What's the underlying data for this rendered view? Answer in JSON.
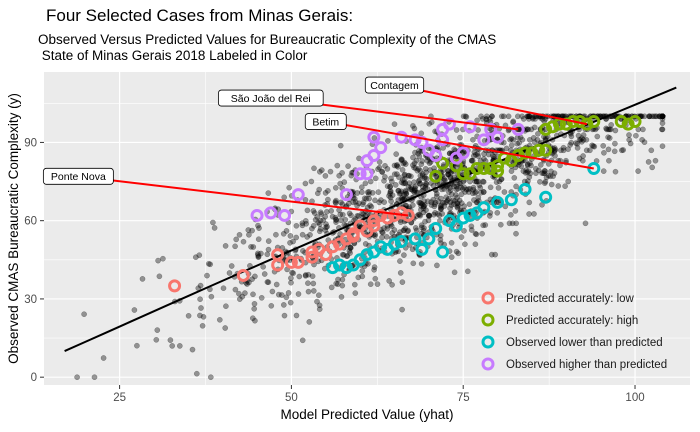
{
  "title": "Four Selected Cases from Minas Gerais:",
  "subtitle": [
    "Observed Versus Predicted Values for Bureaucratic Complexity of the CMAS",
    " State of Minas Gerais 2018 Labeled in Color"
  ],
  "colors": {
    "panel": "#ebebeb",
    "grid": "#ffffff",
    "points": "#000000",
    "fit_line": "#000000",
    "label_line": "#ff0000",
    "low": "#f8766d",
    "high": "#7cae00",
    "lower": "#00bfc4",
    "higher": "#c77cff"
  },
  "chart_data": {
    "type": "scatter",
    "xlabel": "Model Predicted Value (yhat)",
    "ylabel": "Observed CMAS Bureaucratic Complexity (y)",
    "x_ticks": [
      25,
      50,
      75,
      100
    ],
    "y_ticks": [
      0,
      30,
      60,
      90
    ],
    "xlim": [
      14,
      108
    ],
    "ylim": [
      -3,
      117
    ],
    "grid": true,
    "legend_position": "bottom-right",
    "fit_line": {
      "x": [
        17,
        106
      ],
      "y": [
        10,
        111
      ]
    },
    "background_cloud": {
      "n": 1500,
      "description_none": ""
    },
    "legend": [
      {
        "key": "low",
        "label": "Predicted accurately: low"
      },
      {
        "key": "high",
        "label": "Predicted accurately: high"
      },
      {
        "key": "lower",
        "label": "Observed lower than predicted"
      },
      {
        "key": "higher",
        "label": "Observed higher than predicted"
      }
    ],
    "series": [
      {
        "key": "low",
        "points": [
          [
            33,
            35
          ],
          [
            43,
            39
          ],
          [
            48,
            47
          ],
          [
            48,
            43
          ],
          [
            50,
            44
          ],
          [
            51,
            44
          ],
          [
            53,
            48
          ],
          [
            53,
            46
          ],
          [
            54,
            49
          ],
          [
            55,
            47
          ],
          [
            56,
            50
          ],
          [
            57,
            51
          ],
          [
            58,
            53
          ],
          [
            59,
            55
          ],
          [
            59,
            54
          ],
          [
            60,
            58
          ],
          [
            61,
            56
          ],
          [
            62,
            58
          ],
          [
            62,
            60
          ],
          [
            63,
            62
          ],
          [
            64,
            61
          ],
          [
            65,
            62
          ],
          [
            66,
            63
          ],
          [
            67,
            62
          ]
        ]
      },
      {
        "key": "high",
        "points": [
          [
            71,
            77
          ],
          [
            72,
            82
          ],
          [
            74,
            81
          ],
          [
            75,
            78
          ],
          [
            76,
            78
          ],
          [
            77,
            80
          ],
          [
            78,
            80
          ],
          [
            79,
            80
          ],
          [
            80,
            79
          ],
          [
            80,
            81
          ],
          [
            81,
            84
          ],
          [
            82,
            83
          ],
          [
            83,
            85
          ],
          [
            84,
            86
          ],
          [
            85,
            86
          ],
          [
            86,
            87
          ],
          [
            87,
            87
          ],
          [
            87,
            95
          ],
          [
            88,
            96
          ],
          [
            89,
            97
          ],
          [
            90,
            97
          ],
          [
            91,
            98
          ],
          [
            92,
            98
          ],
          [
            93,
            97
          ],
          [
            94,
            98
          ],
          [
            98,
            98
          ],
          [
            99,
            97
          ],
          [
            100,
            98
          ]
        ]
      },
      {
        "key": "lower",
        "points": [
          [
            56,
            42
          ],
          [
            57,
            43
          ],
          [
            58,
            42
          ],
          [
            59,
            43
          ],
          [
            60,
            45
          ],
          [
            61,
            47
          ],
          [
            62,
            48
          ],
          [
            63,
            50
          ],
          [
            64,
            49
          ],
          [
            65,
            51
          ],
          [
            66,
            52
          ],
          [
            68,
            53
          ],
          [
            69,
            49
          ],
          [
            70,
            53
          ],
          [
            71,
            57
          ],
          [
            72,
            48
          ],
          [
            73,
            60
          ],
          [
            74,
            58
          ],
          [
            75,
            61
          ],
          [
            76,
            62
          ],
          [
            77,
            63
          ],
          [
            78,
            65
          ],
          [
            80,
            67
          ],
          [
            82,
            68
          ],
          [
            84,
            72
          ],
          [
            87,
            69
          ],
          [
            94,
            80
          ]
        ]
      },
      {
        "key": "higher",
        "points": [
          [
            45,
            62
          ],
          [
            47,
            63
          ],
          [
            49,
            62
          ],
          [
            51,
            70
          ],
          [
            58,
            70
          ],
          [
            60,
            78
          ],
          [
            61,
            78
          ],
          [
            61,
            83
          ],
          [
            62,
            85
          ],
          [
            62,
            92
          ],
          [
            63,
            88
          ],
          [
            66,
            92
          ],
          [
            68,
            91
          ],
          [
            69,
            90
          ],
          [
            70,
            87
          ],
          [
            71,
            85
          ],
          [
            72,
            91
          ],
          [
            72,
            95
          ],
          [
            73,
            97
          ],
          [
            74,
            84
          ],
          [
            75,
            86
          ],
          [
            76,
            96
          ],
          [
            78,
            91
          ],
          [
            79,
            95
          ],
          [
            80,
            92
          ],
          [
            83,
            95
          ]
        ]
      }
    ],
    "annotations": [
      {
        "label": "Contagem",
        "box": [
          65,
          112
        ],
        "target": [
          93,
          97
        ]
      },
      {
        "label": "São João del Rei",
        "box": [
          47,
          107
        ],
        "target": [
          83,
          95
        ]
      },
      {
        "label": "Betim",
        "box": [
          55,
          98
        ],
        "target": [
          94,
          80
        ]
      },
      {
        "label": "Ponte Nova",
        "box": [
          19,
          77
        ],
        "target": [
          67,
          62
        ]
      }
    ]
  }
}
